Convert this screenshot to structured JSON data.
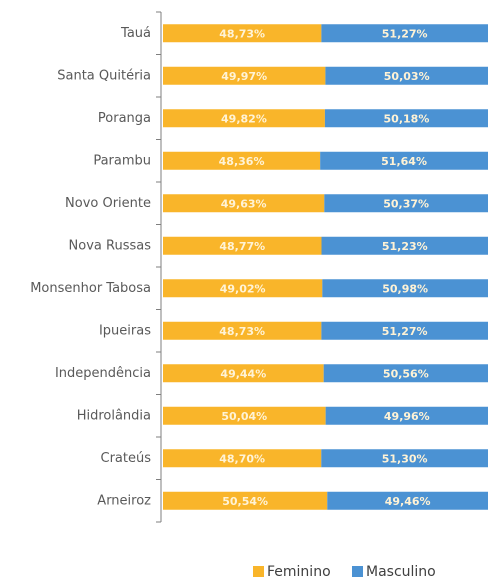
{
  "chart_data": {
    "type": "stacked-bar-horizontal",
    "categories": [
      "Tauá",
      "Santa Quitéria",
      "Poranga",
      "Parambu",
      "Novo Oriente",
      "Nova Russas",
      "Monsenhor Tabosa",
      "Ipueiras",
      "Independência",
      "Hidrolândia",
      "Crateús",
      "Arneiroz"
    ],
    "series": [
      {
        "name": "Feminino",
        "color": "#f9b52a",
        "values": [
          48.73,
          49.97,
          49.82,
          48.36,
          49.63,
          48.77,
          49.02,
          48.73,
          49.44,
          50.04,
          48.7,
          50.54
        ],
        "value_labels": [
          "48,73%",
          "49,97%",
          "49,82%",
          "48,36%",
          "49,63%",
          "48,77%",
          "49,02%",
          "48,73%",
          "49,44%",
          "50,04%",
          "48,70%",
          "50,54%"
        ]
      },
      {
        "name": "Masculino",
        "color": "#4b92d3",
        "values": [
          51.27,
          50.03,
          50.18,
          51.64,
          50.37,
          51.23,
          50.98,
          51.27,
          50.56,
          49.96,
          51.3,
          49.46
        ],
        "value_labels": [
          "51,27%",
          "50,03%",
          "50,18%",
          "51,64%",
          "50,37%",
          "51,23%",
          "50,98%",
          "51,27%",
          "50,56%",
          "49,96%",
          "51,30%",
          "49,46%"
        ]
      }
    ],
    "legend": "bottom"
  }
}
